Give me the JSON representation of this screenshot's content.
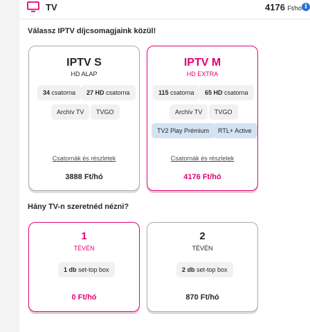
{
  "header": {
    "title": "TV",
    "price_value": "4176",
    "price_unit": "Ft/hó",
    "info_symbol": "i",
    "accent_color": "#e20074"
  },
  "iptv": {
    "question": "Válassz IPTV díjcsomagjaink közül!",
    "packages": [
      {
        "name": "IPTV S",
        "tier": "HD ALAP",
        "chips": [
          {
            "value": "34",
            "label": "csatorna"
          },
          {
            "value": "27 HD",
            "label": "csatorna"
          },
          {
            "value": "",
            "label": "Archív TV"
          },
          {
            "value": "",
            "label": "TVGO"
          }
        ],
        "details_label": "Csatornák és részletek",
        "price": "3888 Ft/hó",
        "selected": false
      },
      {
        "name": "IPTV M",
        "tier": "HD EXTRA",
        "chips": [
          {
            "value": "115",
            "label": "csatorna"
          },
          {
            "value": "65 HD",
            "label": "csatorna"
          },
          {
            "value": "",
            "label": "Archív TV"
          },
          {
            "value": "",
            "label": "TVGO"
          },
          {
            "value": "",
            "label": "TV2 Play Prémium"
          },
          {
            "value": "",
            "label": "RTL+ Active"
          }
        ],
        "details_label": "Csatornák és részletek",
        "price": "4176 Ft/hó",
        "selected": true
      }
    ]
  },
  "tv_count": {
    "question": "Hány TV-n szeretnéd nézni?",
    "options": [
      {
        "count": "1",
        "unit": "TÉVÉN",
        "box_value": "1 db",
        "box_label": "set-top box",
        "price": "0 Ft/hó",
        "selected": true
      },
      {
        "count": "2",
        "unit": "TÉVÉN",
        "box_value": "2 db",
        "box_label": "set-top box",
        "price": "870 Ft/hó",
        "selected": false
      }
    ]
  }
}
